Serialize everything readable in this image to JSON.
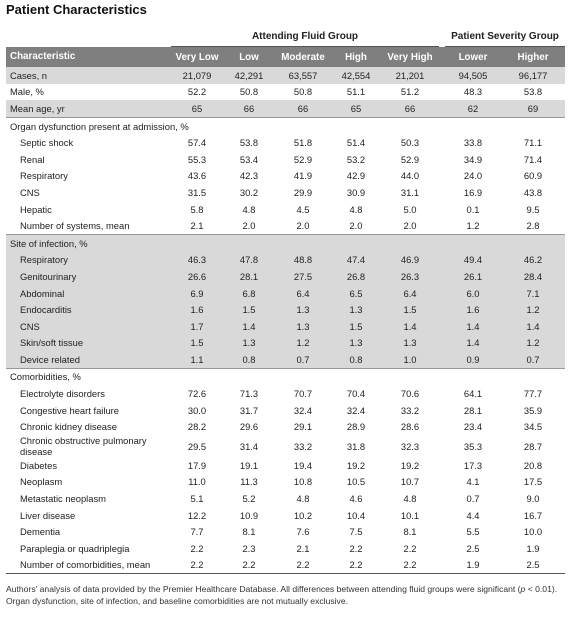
{
  "title": "Patient Characteristics",
  "table": {
    "groups": [
      "Attending Fluid Group",
      "Patient Severity Group"
    ],
    "columns": [
      "Characteristic",
      "Very Low",
      "Low",
      "Moderate",
      "High",
      "Very High",
      "Lower",
      "Higher"
    ],
    "rows": [
      {
        "label": "Cases, n",
        "values": [
          "21,079",
          "42,291",
          "63,557",
          "42,554",
          "21,201",
          "94,505",
          "96,177"
        ]
      },
      {
        "label": "Male, %",
        "values": [
          "52.2",
          "50.8",
          "50.8",
          "51.1",
          "51.2",
          "48.3",
          "53.8"
        ]
      },
      {
        "label": "Mean age, yr",
        "values": [
          "65",
          "66",
          "66",
          "65",
          "66",
          "62",
          "69"
        ]
      }
    ],
    "sections": [
      {
        "title": "Organ dysfunction present at admission, %",
        "rows": [
          {
            "label": "Septic shock",
            "values": [
              "57.4",
              "53.8",
              "51.8",
              "51.4",
              "50.3",
              "33.8",
              "71.1"
            ]
          },
          {
            "label": "Renal",
            "values": [
              "55.3",
              "53.4",
              "52.9",
              "53.2",
              "52.9",
              "34.9",
              "71.4"
            ]
          },
          {
            "label": "Respiratory",
            "values": [
              "43.6",
              "42.3",
              "41.9",
              "42.9",
              "44.0",
              "24.0",
              "60.9"
            ]
          },
          {
            "label": "CNS",
            "values": [
              "31.5",
              "30.2",
              "29.9",
              "30.9",
              "31.1",
              "16.9",
              "43.8"
            ]
          },
          {
            "label": "Hepatic",
            "values": [
              "5.8",
              "4.8",
              "4.5",
              "4.8",
              "5.0",
              "0.1",
              "9.5"
            ]
          },
          {
            "label": "Number of systems, mean",
            "values": [
              "2.1",
              "2.0",
              "2.0",
              "2.0",
              "2.0",
              "1.2",
              "2.8"
            ]
          }
        ]
      },
      {
        "title": "Site of infection, %",
        "rows": [
          {
            "label": "Respiratory",
            "values": [
              "46.3",
              "47.8",
              "48.8",
              "47.4",
              "46.9",
              "49.4",
              "46.2"
            ]
          },
          {
            "label": "Genitourinary",
            "values": [
              "26.6",
              "28.1",
              "27.5",
              "26.8",
              "26.3",
              "26.1",
              "28.4"
            ]
          },
          {
            "label": "Abdominal",
            "values": [
              "6.9",
              "6.8",
              "6.4",
              "6.5",
              "6.4",
              "6.0",
              "7.1"
            ]
          },
          {
            "label": "Endocarditis",
            "values": [
              "1.6",
              "1.5",
              "1.3",
              "1.3",
              "1.5",
              "1.6",
              "1.2"
            ]
          },
          {
            "label": "CNS",
            "values": [
              "1.7",
              "1.4",
              "1.3",
              "1.5",
              "1.4",
              "1.4",
              "1.4"
            ]
          },
          {
            "label": "Skin/soft tissue",
            "values": [
              "1.5",
              "1.3",
              "1.2",
              "1.3",
              "1.3",
              "1.4",
              "1.2"
            ]
          },
          {
            "label": "Device related",
            "values": [
              "1.1",
              "0.8",
              "0.7",
              "0.8",
              "1.0",
              "0.9",
              "0.7"
            ]
          }
        ]
      },
      {
        "title": "Comorbidities, %",
        "rows": [
          {
            "label": "Electrolyte disorders",
            "values": [
              "72.6",
              "71.3",
              "70.7",
              "70.4",
              "70.6",
              "64.1",
              "77.7"
            ]
          },
          {
            "label": "Congestive heart failure",
            "values": [
              "30.0",
              "31.7",
              "32.4",
              "32.4",
              "33.2",
              "28.1",
              "35.9"
            ]
          },
          {
            "label": "Chronic kidney disease",
            "values": [
              "28.2",
              "29.6",
              "29.1",
              "28.9",
              "28.6",
              "23.4",
              "34.5"
            ]
          },
          {
            "label": "Chronic obstructive pulmonary disease",
            "values": [
              "29.5",
              "31.4",
              "33.2",
              "31.8",
              "32.3",
              "35.3",
              "28.7"
            ]
          },
          {
            "label": "Diabetes",
            "values": [
              "17.9",
              "19.1",
              "19.4",
              "19.2",
              "19.2",
              "17.3",
              "20.8"
            ]
          },
          {
            "label": "Neoplasm",
            "values": [
              "11.0",
              "11.3",
              "10.8",
              "10.5",
              "10.7",
              "4.1",
              "17.5"
            ]
          },
          {
            "label": "Metastatic neoplasm",
            "values": [
              "5.1",
              "5.2",
              "4.8",
              "4.6",
              "4.8",
              "0.7",
              "9.0"
            ]
          },
          {
            "label": "Liver disease",
            "values": [
              "12.2",
              "10.9",
              "10.2",
              "10.4",
              "10.1",
              "4.4",
              "16.7"
            ]
          },
          {
            "label": "Dementia",
            "values": [
              "7.7",
              "8.1",
              "7.6",
              "7.5",
              "8.1",
              "5.5",
              "10.0"
            ]
          },
          {
            "label": "Paraplegia or quadriplegia",
            "values": [
              "2.2",
              "2.3",
              "2.1",
              "2.2",
              "2.2",
              "2.5",
              "1.9"
            ]
          },
          {
            "label": "Number of comorbidities, mean",
            "values": [
              "2.2",
              "2.2",
              "2.2",
              "2.2",
              "2.2",
              "1.9",
              "2.5"
            ]
          }
        ]
      }
    ]
  },
  "footnote": [
    "Authors' analysis of data provided by the Premier Healthcare Database. All differences between attending fluid groups were significant (",
    "p",
    " < 0.01). Organ dysfunction, site of infection, and baseline comorbidities are not mutually exclusive."
  ]
}
